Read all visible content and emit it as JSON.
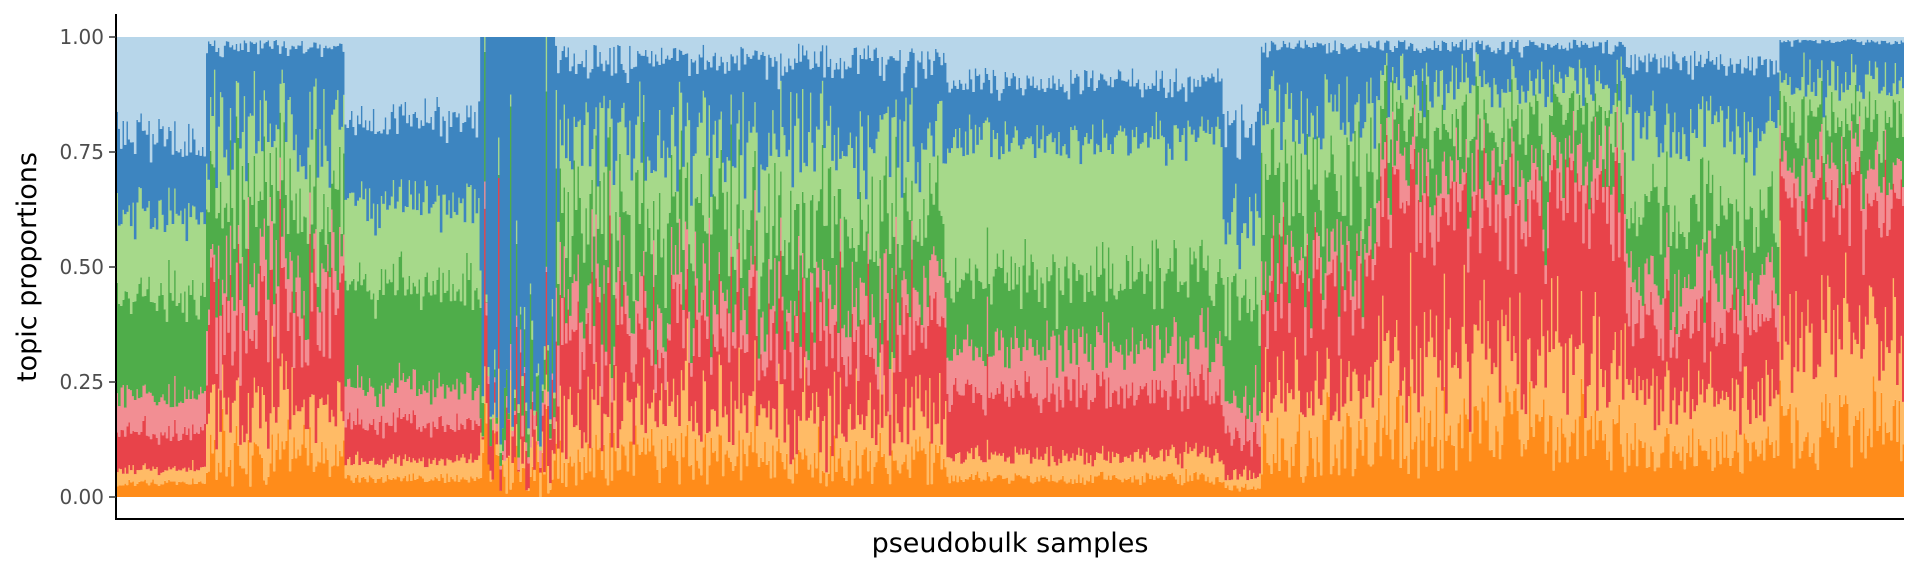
{
  "chart_data": {
    "type": "area",
    "subtype": "stacked-structure-plot",
    "title": "",
    "xlabel": "pseudobulk samples",
    "ylabel": "topic proportions",
    "ylim": [
      0,
      1
    ],
    "y_ticks": [
      "0.00",
      "0.25",
      "0.50",
      "0.75",
      "1.00"
    ],
    "x_ticks_shown": false,
    "grid": false,
    "legend": "none",
    "stack_order_bottom_to_top": [
      "orange-dark",
      "orange-light",
      "red",
      "pink",
      "green-dark",
      "green-light",
      "blue-dark",
      "blue-light"
    ],
    "colors": [
      "#ff8c1a",
      "#ffbb66",
      "#e8434a",
      "#f28e93",
      "#4fad4a",
      "#a6d98a",
      "#3d85c0",
      "#b7d6ea"
    ],
    "groups": [
      {
        "start": 0.0,
        "end": 0.05,
        "mean": [
          0.03,
          0.03,
          0.08,
          0.08,
          0.22,
          0.18,
          0.16,
          0.22
        ],
        "noise": 0.12
      },
      {
        "start": 0.05,
        "end": 0.128,
        "mean": [
          0.08,
          0.12,
          0.2,
          0.1,
          0.15,
          0.15,
          0.18,
          0.02
        ],
        "noise": 0.35
      },
      {
        "start": 0.128,
        "end": 0.203,
        "mean": [
          0.04,
          0.04,
          0.08,
          0.08,
          0.22,
          0.18,
          0.18,
          0.18
        ],
        "noise": 0.12
      },
      {
        "start": 0.203,
        "end": 0.246,
        "mean": [
          0.06,
          0.04,
          0.08,
          0.02,
          0.06,
          0.02,
          0.72,
          0.0
        ],
        "noise": 0.6
      },
      {
        "start": 0.246,
        "end": 0.465,
        "mean": [
          0.08,
          0.1,
          0.18,
          0.08,
          0.17,
          0.17,
          0.17,
          0.05
        ],
        "noise": 0.35
      },
      {
        "start": 0.465,
        "end": 0.619,
        "mean": [
          0.04,
          0.05,
          0.14,
          0.1,
          0.15,
          0.3,
          0.12,
          0.1
        ],
        "noise": 0.15
      },
      {
        "start": 0.619,
        "end": 0.64,
        "mean": [
          0.02,
          0.03,
          0.08,
          0.08,
          0.2,
          0.18,
          0.2,
          0.21
        ],
        "noise": 0.2
      },
      {
        "start": 0.64,
        "end": 0.706,
        "mean": [
          0.12,
          0.14,
          0.22,
          0.06,
          0.16,
          0.14,
          0.14,
          0.02
        ],
        "noise": 0.35
      },
      {
        "start": 0.706,
        "end": 0.845,
        "mean": [
          0.14,
          0.18,
          0.32,
          0.08,
          0.1,
          0.08,
          0.08,
          0.02
        ],
        "noise": 0.35
      },
      {
        "start": 0.845,
        "end": 0.93,
        "mean": [
          0.1,
          0.12,
          0.16,
          0.1,
          0.14,
          0.18,
          0.14,
          0.06
        ],
        "noise": 0.25
      },
      {
        "start": 0.93,
        "end": 1.0,
        "mean": [
          0.15,
          0.2,
          0.3,
          0.08,
          0.1,
          0.08,
          0.08,
          0.01
        ],
        "noise": 0.3
      }
    ],
    "n_samples": 900
  }
}
